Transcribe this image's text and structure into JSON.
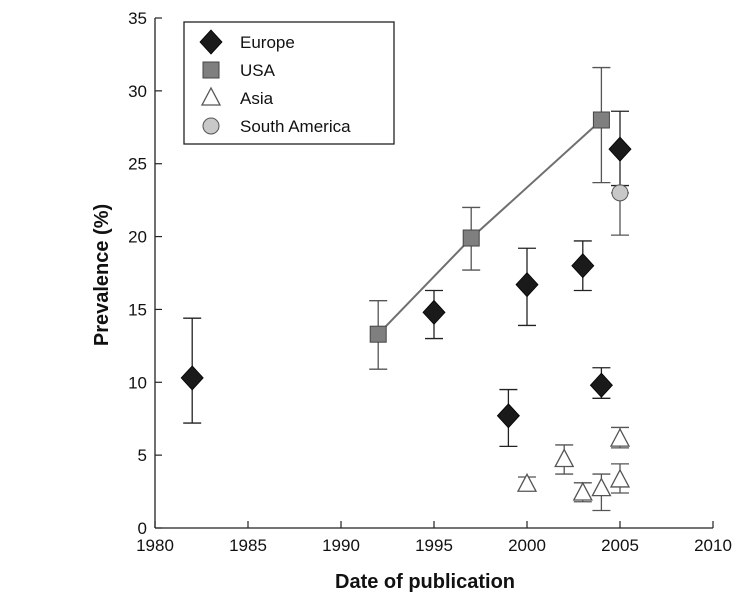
{
  "chart_data": {
    "type": "scatter",
    "title": "",
    "xlabel": "Date of publication",
    "ylabel": "Prevalence (%)",
    "xlim": [
      1980,
      2010
    ],
    "ylim": [
      0,
      35
    ],
    "xticks": [
      "1980",
      "1985",
      "1990",
      "1995",
      "2000",
      "2005",
      "2010"
    ],
    "yticks": [
      "0",
      "5",
      "10",
      "15",
      "20",
      "25",
      "30",
      "35"
    ],
    "grid": false,
    "legend_position": "top-left",
    "series": [
      {
        "name": "Europe",
        "marker": "diamond",
        "color": "#1a1a1a",
        "points": [
          {
            "x": 1982,
            "y": 10.3,
            "err_low": 7.2,
            "err_high": 14.4
          },
          {
            "x": 1995,
            "y": 14.8,
            "err_low": 13.0,
            "err_high": 16.3
          },
          {
            "x": 1999,
            "y": 7.7,
            "err_low": 5.6,
            "err_high": 9.5
          },
          {
            "x": 2000,
            "y": 16.7,
            "err_low": 13.9,
            "err_high": 19.2
          },
          {
            "x": 2003,
            "y": 18.0,
            "err_low": 16.3,
            "err_high": 19.7
          },
          {
            "x": 2004,
            "y": 9.8,
            "err_low": 8.9,
            "err_high": 11.0
          },
          {
            "x": 2005,
            "y": 26.0,
            "err_low": 23.5,
            "err_high": 28.6
          }
        ]
      },
      {
        "name": "USA",
        "marker": "square",
        "color": "#7f7f7f",
        "connected": true,
        "points": [
          {
            "x": 1992,
            "y": 13.3,
            "err_low": 10.9,
            "err_high": 15.6
          },
          {
            "x": 1997,
            "y": 19.9,
            "err_low": 17.7,
            "err_high": 22.0
          },
          {
            "x": 2004,
            "y": 28.0,
            "err_low": 23.7,
            "err_high": 31.6
          }
        ]
      },
      {
        "name": "Asia",
        "marker": "triangle-open",
        "color": "#555555",
        "points": [
          {
            "x": 2000,
            "y": 3.0,
            "err_low": 2.6,
            "err_high": 3.5
          },
          {
            "x": 2002,
            "y": 4.7,
            "err_low": 3.7,
            "err_high": 5.7
          },
          {
            "x": 2003,
            "y": 2.4,
            "err_low": 1.8,
            "err_high": 3.1
          },
          {
            "x": 2004,
            "y": 2.7,
            "err_low": 1.2,
            "err_high": 3.7
          },
          {
            "x": 2005,
            "y": 6.1,
            "err_low": 5.5,
            "err_high": 6.9
          },
          {
            "x": 2005,
            "y": 3.3,
            "err_low": 2.4,
            "err_high": 4.4
          }
        ]
      },
      {
        "name": "South America",
        "marker": "circle",
        "color": "#c8c8c8",
        "points": [
          {
            "x": 2005,
            "y": 23.0,
            "err_low": 20.1,
            "err_high": 23.0
          }
        ]
      }
    ]
  }
}
